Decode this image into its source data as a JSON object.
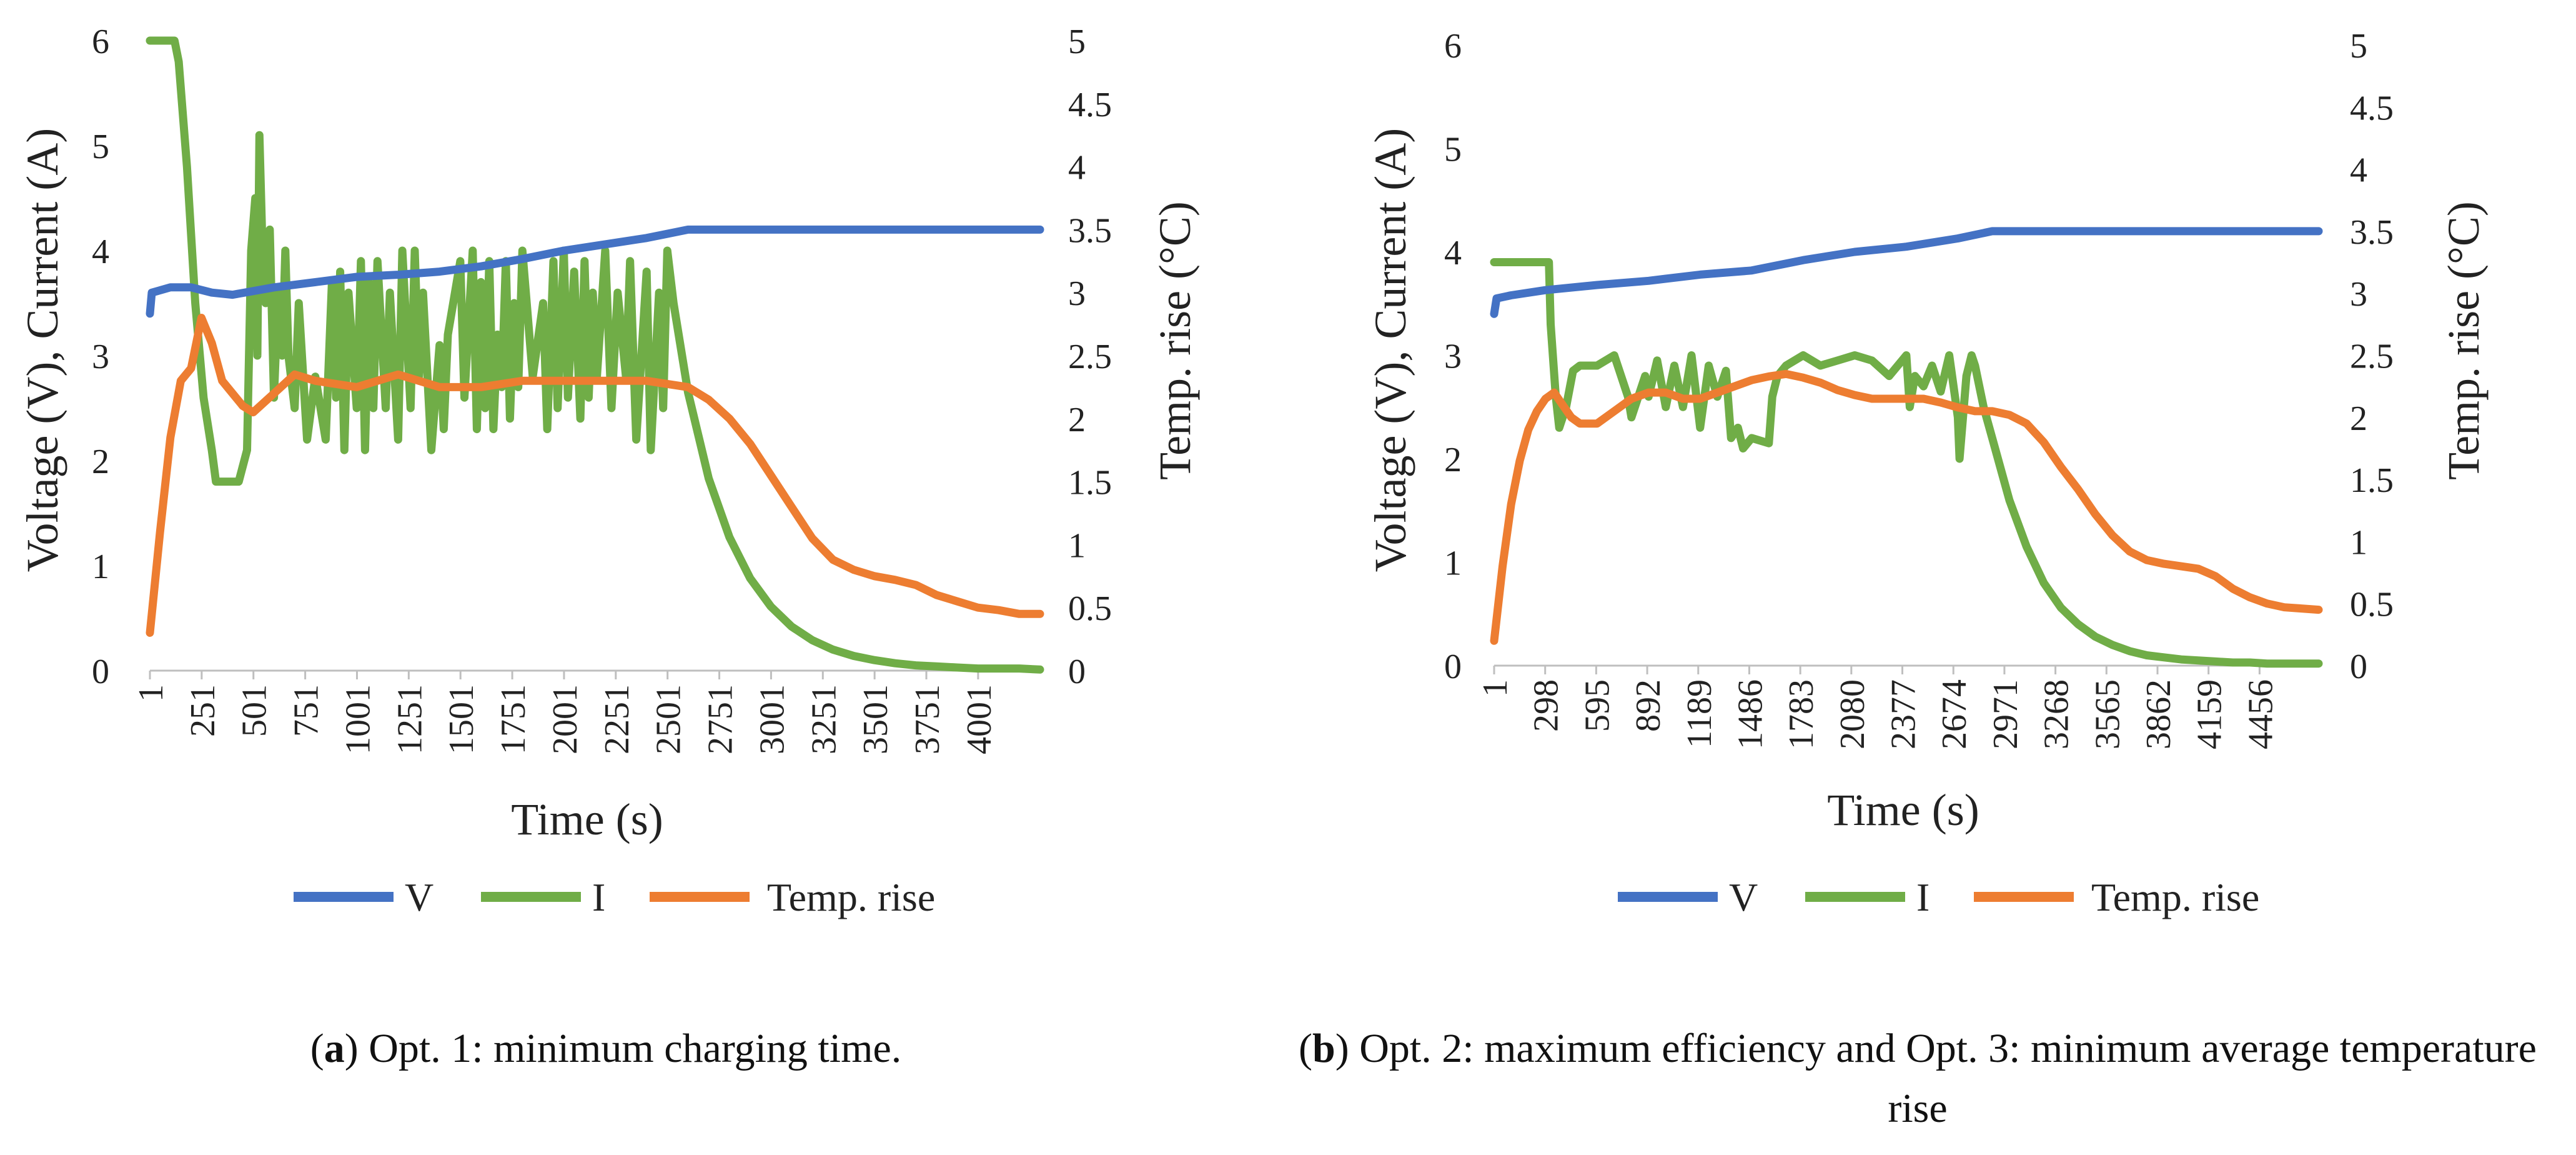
{
  "colors": {
    "V": "#4472C4",
    "I": "#70AD47",
    "T": "#ED7D31",
    "axis": "#bfbfbf",
    "text": "#222222"
  },
  "chart_data": [
    {
      "type": "line",
      "panel": "a",
      "xlabel": "Time (s)",
      "ylabel": "Voltage (V), Current (A)",
      "y2label": "Temp. rise (°C)",
      "xlim": [
        1,
        4300
      ],
      "ylim": [
        0,
        6
      ],
      "y2lim": [
        0,
        5
      ],
      "x_tick_values": [
        1,
        251,
        501,
        751,
        1001,
        1251,
        1501,
        1751,
        2001,
        2251,
        2501,
        2751,
        3001,
        3251,
        3501,
        3751,
        4001
      ],
      "x_tick_labels": [
        "1",
        "251",
        "501",
        "751",
        "1001",
        "1251",
        "1501",
        "1751",
        "2001",
        "2251",
        "2501",
        "2751",
        "3001",
        "3251",
        "3501",
        "3751",
        "4001"
      ],
      "y_ticks": [
        "0",
        "1",
        "2",
        "3",
        "4",
        "5",
        "6"
      ],
      "y2_ticks": [
        "0",
        "0.5",
        "1",
        "1.5",
        "2",
        "2.5",
        "3",
        "3.5",
        "4",
        "4.5",
        "5"
      ],
      "legend": [
        "V",
        "I",
        "Temp. rise"
      ],
      "series": [
        {
          "name": "V",
          "axis": "left",
          "x": [
            1,
            10,
            100,
            200,
            300,
            400,
            600,
            800,
            1000,
            1200,
            1400,
            1600,
            1800,
            2000,
            2200,
            2400,
            2550,
            2600,
            4300
          ],
          "y": [
            3.4,
            3.6,
            3.65,
            3.65,
            3.6,
            3.58,
            3.65,
            3.7,
            3.75,
            3.77,
            3.8,
            3.85,
            3.92,
            4.0,
            4.06,
            4.12,
            4.18,
            4.2,
            4.2
          ]
        },
        {
          "name": "I",
          "axis": "left",
          "x": [
            1,
            120,
            140,
            180,
            220,
            260,
            300,
            320,
            380,
            430,
            470,
            490,
            510,
            520,
            530,
            545,
            560,
            580,
            600,
            620,
            640,
            655,
            670,
            700,
            720,
            760,
            800,
            850,
            880,
            900,
            920,
            940,
            960,
            1000,
            1020,
            1040,
            1060,
            1080,
            1100,
            1140,
            1160,
            1200,
            1220,
            1260,
            1280,
            1300,
            1320,
            1360,
            1400,
            1420,
            1440,
            1500,
            1520,
            1560,
            1580,
            1600,
            1620,
            1640,
            1660,
            1680,
            1700,
            1720,
            1740,
            1760,
            1780,
            1800,
            1850,
            1900,
            1920,
            1950,
            1970,
            2000,
            2020,
            2050,
            2080,
            2100,
            2120,
            2140,
            2160,
            2200,
            2230,
            2260,
            2300,
            2320,
            2350,
            2400,
            2420,
            2460,
            2480,
            2500,
            2530,
            2600,
            2700,
            2800,
            2900,
            3000,
            3100,
            3200,
            3300,
            3400,
            3500,
            3600,
            3700,
            3800,
            3900,
            4000,
            4100,
            4200,
            4300
          ],
          "y": [
            6.0,
            6.0,
            5.8,
            4.8,
            3.5,
            2.6,
            2.1,
            1.8,
            1.8,
            1.8,
            2.1,
            4.0,
            4.5,
            3.0,
            5.1,
            4.0,
            3.5,
            4.2,
            2.6,
            3.6,
            3.0,
            4.0,
            3.0,
            2.5,
            3.5,
            2.2,
            2.8,
            2.2,
            3.7,
            2.6,
            3.8,
            2.1,
            3.6,
            2.5,
            3.9,
            2.1,
            3.7,
            2.5,
            3.9,
            2.5,
            3.6,
            2.2,
            4.0,
            2.5,
            4.0,
            2.8,
            3.6,
            2.1,
            3.1,
            2.3,
            3.2,
            3.9,
            2.6,
            4.0,
            2.3,
            3.7,
            2.5,
            3.9,
            2.3,
            3.2,
            2.7,
            3.9,
            2.4,
            3.5,
            2.7,
            4.0,
            2.8,
            3.5,
            2.3,
            3.9,
            2.5,
            4.0,
            2.6,
            3.8,
            2.4,
            3.9,
            2.6,
            3.6,
            2.8,
            4.0,
            2.5,
            3.6,
            2.8,
            3.9,
            2.2,
            3.8,
            2.1,
            3.6,
            2.5,
            4.0,
            3.5,
            2.65,
            1.83,
            1.27,
            0.88,
            0.61,
            0.42,
            0.29,
            0.2,
            0.14,
            0.1,
            0.07,
            0.05,
            0.04,
            0.03,
            0.02,
            0.02,
            0.02,
            0.01
          ]
        },
        {
          "name": "Temp. rise",
          "axis": "right",
          "x": [
            1,
            50,
            100,
            150,
            200,
            250,
            300,
            350,
            400,
            450,
            500,
            600,
            700,
            800,
            1000,
            1200,
            1400,
            1600,
            1800,
            2000,
            2200,
            2400,
            2600,
            2700,
            2800,
            2900,
            3000,
            3100,
            3200,
            3300,
            3400,
            3500,
            3600,
            3700,
            3800,
            3900,
            4000,
            4100,
            4200,
            4300
          ],
          "y": [
            0.3,
            1.1,
            1.85,
            2.3,
            2.4,
            2.8,
            2.6,
            2.3,
            2.2,
            2.1,
            2.05,
            2.2,
            2.35,
            2.3,
            2.25,
            2.35,
            2.25,
            2.25,
            2.3,
            2.3,
            2.3,
            2.3,
            2.25,
            2.15,
            2.0,
            1.8,
            1.55,
            1.3,
            1.05,
            0.88,
            0.8,
            0.75,
            0.72,
            0.68,
            0.6,
            0.55,
            0.5,
            0.48,
            0.45,
            0.45
          ]
        }
      ]
    },
    {
      "type": "line",
      "panel": "b",
      "xlabel": "Time (s)",
      "ylabel": "Voltage (V), Current (A)",
      "y2label": "Temp. rise (°C)",
      "xlim": [
        1,
        4800
      ],
      "ylim": [
        0,
        6
      ],
      "y2lim": [
        0,
        5
      ],
      "x_tick_values": [
        1,
        298,
        595,
        892,
        1189,
        1486,
        1783,
        2080,
        2377,
        2674,
        2971,
        3268,
        3565,
        3862,
        4159,
        4456
      ],
      "x_tick_labels": [
        "1",
        "298",
        "595",
        "892",
        "1189",
        "1486",
        "1783",
        "2080",
        "2377",
        "2674",
        "2971",
        "3268",
        "3565",
        "3862",
        "4159",
        "4456"
      ],
      "y_ticks": [
        "0",
        "1",
        "2",
        "3",
        "4",
        "5",
        "6"
      ],
      "y2_ticks": [
        "0",
        "0.5",
        "1",
        "1.5",
        "2",
        "2.5",
        "3",
        "3.5",
        "4",
        "4.5",
        "5"
      ],
      "legend": [
        "V",
        "I",
        "Temp. rise"
      ],
      "series": [
        {
          "name": "V",
          "axis": "left",
          "x": [
            1,
            15,
            100,
            300,
            600,
            900,
            1200,
            1500,
            1800,
            2100,
            2400,
            2700,
            2900,
            4800
          ],
          "y": [
            3.4,
            3.55,
            3.58,
            3.63,
            3.68,
            3.72,
            3.78,
            3.82,
            3.92,
            4.0,
            4.05,
            4.13,
            4.2,
            4.2
          ]
        },
        {
          "name": "I",
          "axis": "left",
          "x": [
            1,
            320,
            330,
            360,
            380,
            420,
            460,
            500,
            600,
            700,
            780,
            800,
            880,
            900,
            950,
            1000,
            1050,
            1100,
            1150,
            1200,
            1250,
            1300,
            1350,
            1380,
            1420,
            1450,
            1500,
            1600,
            1620,
            1650,
            1700,
            1800,
            1900,
            2000,
            2100,
            2200,
            2300,
            2400,
            2420,
            2450,
            2500,
            2550,
            2600,
            2650,
            2700,
            2710,
            2730,
            2750,
            2780,
            2800,
            2850,
            2900,
            3000,
            3100,
            3200,
            3300,
            3400,
            3500,
            3600,
            3700,
            3800,
            3900,
            4000,
            4100,
            4200,
            4300,
            4400,
            4500,
            4600,
            4700,
            4800
          ],
          "y": [
            3.9,
            3.9,
            3.3,
            2.6,
            2.3,
            2.5,
            2.85,
            2.9,
            2.9,
            3.0,
            2.6,
            2.4,
            2.8,
            2.6,
            2.95,
            2.5,
            2.9,
            2.5,
            3.0,
            2.3,
            2.9,
            2.6,
            2.85,
            2.2,
            2.3,
            2.1,
            2.2,
            2.15,
            2.6,
            2.8,
            2.9,
            3.0,
            2.9,
            2.95,
            3.0,
            2.95,
            2.8,
            3.0,
            2.5,
            2.8,
            2.7,
            2.9,
            2.65,
            3.0,
            2.4,
            2.0,
            2.4,
            2.8,
            3.0,
            2.9,
            2.5,
            2.2,
            1.6,
            1.15,
            0.8,
            0.56,
            0.4,
            0.28,
            0.2,
            0.14,
            0.1,
            0.08,
            0.06,
            0.05,
            0.04,
            0.03,
            0.03,
            0.02,
            0.02,
            0.02,
            0.02
          ]
        },
        {
          "name": "Temp. rise",
          "axis": "right",
          "x": [
            1,
            50,
            100,
            150,
            200,
            250,
            300,
            350,
            400,
            450,
            500,
            600,
            700,
            800,
            900,
            1000,
            1100,
            1200,
            1300,
            1400,
            1500,
            1600,
            1700,
            1800,
            1900,
            2000,
            2100,
            2200,
            2300,
            2400,
            2500,
            2600,
            2700,
            2800,
            2900,
            3000,
            3100,
            3200,
            3300,
            3400,
            3500,
            3600,
            3700,
            3800,
            3900,
            4000,
            4100,
            4200,
            4300,
            4400,
            4500,
            4600,
            4700,
            4800
          ],
          "y": [
            0.2,
            0.8,
            1.3,
            1.65,
            1.9,
            2.05,
            2.15,
            2.2,
            2.1,
            2.0,
            1.95,
            1.95,
            2.05,
            2.15,
            2.2,
            2.2,
            2.15,
            2.15,
            2.2,
            2.25,
            2.3,
            2.33,
            2.35,
            2.32,
            2.28,
            2.22,
            2.18,
            2.15,
            2.15,
            2.15,
            2.15,
            2.12,
            2.08,
            2.05,
            2.05,
            2.02,
            1.95,
            1.8,
            1.6,
            1.42,
            1.22,
            1.05,
            0.92,
            0.85,
            0.82,
            0.8,
            0.78,
            0.72,
            0.62,
            0.55,
            0.5,
            0.47,
            0.46,
            0.45
          ]
        }
      ]
    }
  ],
  "captions": [
    {
      "label": "a",
      "text": "Opt. 1: minimum charging time."
    },
    {
      "label": "b",
      "text": "Opt. 2: maximum efficiency and Opt. 3: minimum average temperature rise"
    }
  ]
}
